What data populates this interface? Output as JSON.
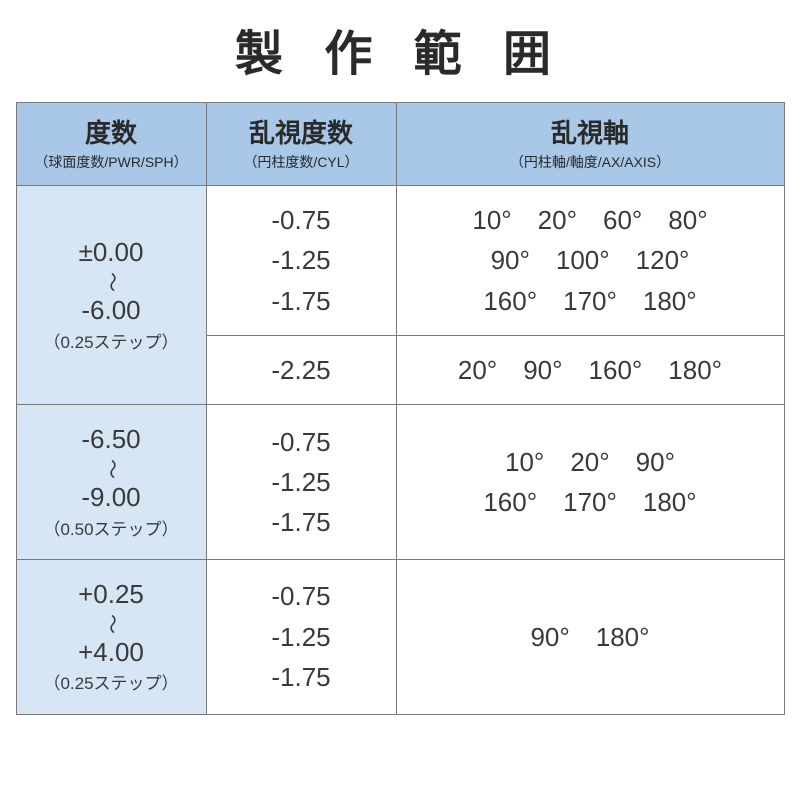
{
  "title": "製 作 範 囲",
  "headers": {
    "power": {
      "main": "度数",
      "sub": "（球面度数/PWR/SPH）"
    },
    "cyl": {
      "main": "乱視度数",
      "sub": "（円柱度数/CYL）"
    },
    "axis": {
      "main": "乱視軸",
      "sub": "（円柱軸/軸度/AX/AXIS）"
    }
  },
  "groups": [
    {
      "power": {
        "from": "±0.00",
        "to": "-6.00",
        "step": "（0.25ステップ）"
      },
      "rows": [
        {
          "cyl": "-0.75\n-1.25\n-1.75",
          "axis_lines": [
            "10°　20°　60°　80°",
            "90°　100°　120°",
            "160°　170°　180°"
          ]
        },
        {
          "cyl": "-2.25",
          "axis_lines": [
            "20°　90°　160°　180°"
          ]
        }
      ]
    },
    {
      "power": {
        "from": "-6.50",
        "to": "-9.00",
        "step": "（0.50ステップ）"
      },
      "rows": [
        {
          "cyl": "-0.75\n-1.25\n-1.75",
          "axis_lines": [
            "10°　20°　90°",
            "160°　170°　180°"
          ]
        }
      ]
    },
    {
      "power": {
        "from": "+0.25",
        "to": "+4.00",
        "step": "（0.25ステップ）"
      },
      "rows": [
        {
          "cyl": "-0.75\n-1.25\n-1.75",
          "axis_lines": [
            "90°　180°"
          ]
        }
      ]
    }
  ]
}
